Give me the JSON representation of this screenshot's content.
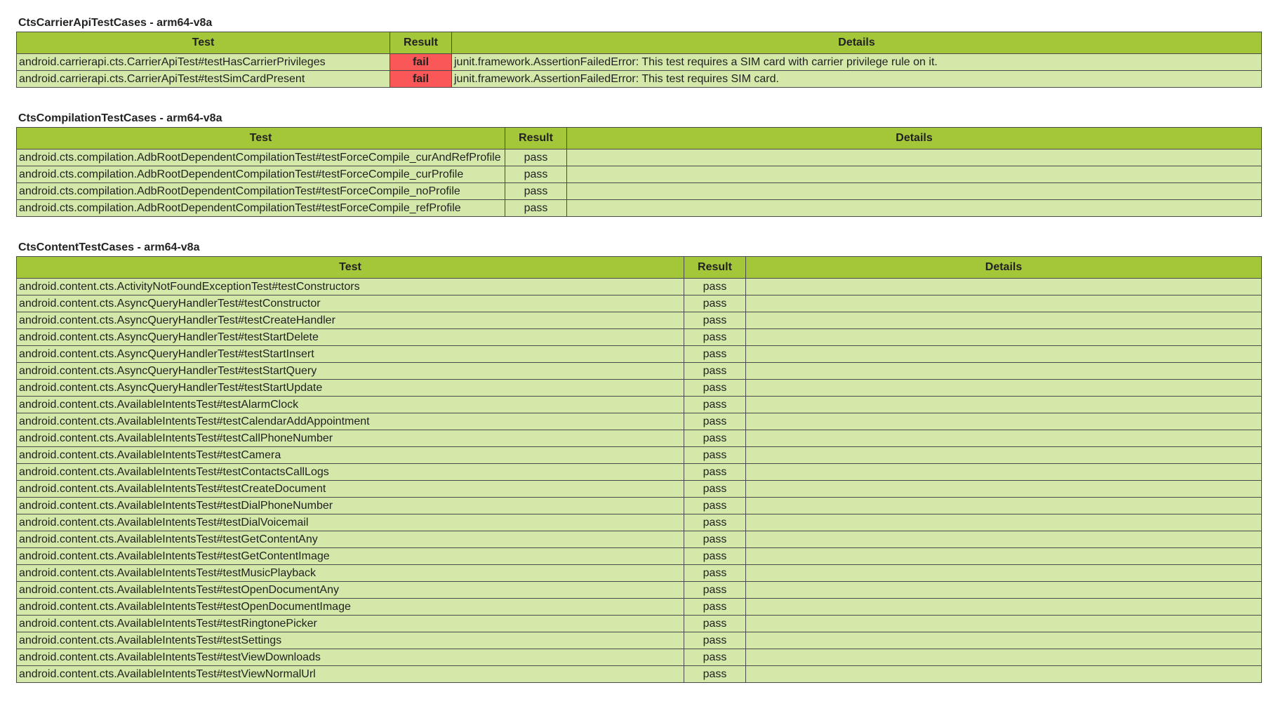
{
  "sections": [
    {
      "title": "CtsCarrierApiTestCases - arm64-v8a",
      "header": [
        "Test",
        "Result",
        "Details"
      ],
      "rows": [
        [
          "android.carrierapi.cts.CarrierApiTest#testHasCarrierPrivileges",
          "fail",
          "junit.framework.AssertionFailedError: This test requires a SIM card with carrier privilege rule on it."
        ],
        [
          "android.carrierapi.cts.CarrierApiTest#testSimCardPresent",
          "fail",
          "junit.framework.AssertionFailedError: This test requires SIM card."
        ]
      ]
    },
    {
      "title": "CtsCompilationTestCases - arm64-v8a",
      "header": [
        "Test",
        "Result",
        "Details"
      ],
      "rows": [
        [
          "android.cts.compilation.AdbRootDependentCompilationTest#testForceCompile_curAndRefProfile",
          "pass"
        ],
        [
          "android.cts.compilation.AdbRootDependentCompilationTest#testForceCompile_curProfile",
          "pass"
        ],
        [
          "android.cts.compilation.AdbRootDependentCompilationTest#testForceCompile_noProfile",
          "pass"
        ],
        [
          "android.cts.compilation.AdbRootDependentCompilationTest#testForceCompile_refProfile",
          "pass"
        ]
      ]
    },
    {
      "title": "CtsContentTestCases - arm64-v8a",
      "header": [
        "Test",
        "Result",
        "Details"
      ],
      "rows": [
        [
          "android.content.cts.ActivityNotFoundExceptionTest#testConstructors",
          "pass"
        ],
        [
          "android.content.cts.AsyncQueryHandlerTest#testConstructor",
          "pass"
        ],
        [
          "android.content.cts.AsyncQueryHandlerTest#testCreateHandler",
          "pass"
        ],
        [
          "android.content.cts.AsyncQueryHandlerTest#testStartDelete",
          "pass"
        ],
        [
          "android.content.cts.AsyncQueryHandlerTest#testStartInsert",
          "pass"
        ],
        [
          "android.content.cts.AsyncQueryHandlerTest#testStartQuery",
          "pass"
        ],
        [
          "android.content.cts.AsyncQueryHandlerTest#testStartUpdate",
          "pass"
        ],
        [
          "android.content.cts.AvailableIntentsTest#testAlarmClock",
          "pass"
        ],
        [
          "android.content.cts.AvailableIntentsTest#testCalendarAddAppointment",
          "pass"
        ],
        [
          "android.content.cts.AvailableIntentsTest#testCallPhoneNumber",
          "pass"
        ],
        [
          "android.content.cts.AvailableIntentsTest#testCamera",
          "pass"
        ],
        [
          "android.content.cts.AvailableIntentsTest#testContactsCallLogs",
          "pass"
        ],
        [
          "android.content.cts.AvailableIntentsTest#testCreateDocument",
          "pass"
        ],
        [
          "android.content.cts.AvailableIntentsTest#testDialPhoneNumber",
          "pass"
        ],
        [
          "android.content.cts.AvailableIntentsTest#testDialVoicemail",
          "pass"
        ],
        [
          "android.content.cts.AvailableIntentsTest#testGetContentAny",
          "pass"
        ],
        [
          "android.content.cts.AvailableIntentsTest#testGetContentImage",
          "pass"
        ],
        [
          "android.content.cts.AvailableIntentsTest#testMusicPlayback",
          "pass"
        ],
        [
          "android.content.cts.AvailableIntentsTest#testOpenDocumentAny",
          "pass"
        ],
        [
          "android.content.cts.AvailableIntentsTest#testOpenDocumentImage",
          "pass"
        ],
        [
          "android.content.cts.AvailableIntentsTest#testRingtonePicker",
          "pass"
        ],
        [
          "android.content.cts.AvailableIntentsTest#testSettings",
          "pass"
        ],
        [
          "android.content.cts.AvailableIntentsTest#testViewDownloads",
          "pass"
        ],
        [
          "android.content.cts.AvailableIntentsTest#testViewNormalUrl",
          "pass"
        ]
      ]
    }
  ]
}
